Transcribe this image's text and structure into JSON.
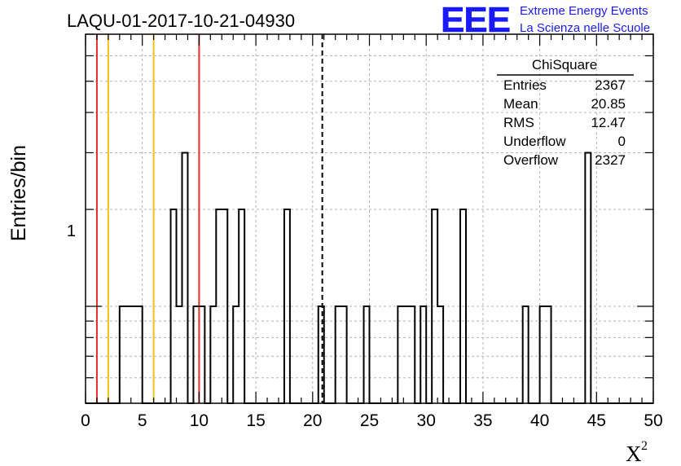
{
  "chart_data": {
    "type": "bar",
    "title": "LAQU-01-2017-10-21-04930",
    "ylabel": "Entries/bin",
    "xlabel": "X",
    "xlabel_superscript": "2",
    "xlim": [
      0,
      50
    ],
    "y_scale": "log",
    "ylim": [
      0.5,
      7
    ],
    "y_tick_label": "1",
    "x_ticks": [
      0,
      5,
      10,
      15,
      20,
      25,
      30,
      35,
      40,
      45,
      50
    ],
    "x_tick_labels": [
      "0",
      "5",
      "10",
      "15",
      "20",
      "25",
      "30",
      "35",
      "40",
      "45",
      "50"
    ],
    "bin_width": 0.5,
    "grid": true,
    "bins": [
      {
        "x": 3.0,
        "count": 1
      },
      {
        "x": 3.5,
        "count": 1
      },
      {
        "x": 4.0,
        "count": 1
      },
      {
        "x": 4.5,
        "count": 1
      },
      {
        "x": 7.5,
        "count": 2
      },
      {
        "x": 8.0,
        "count": 1
      },
      {
        "x": 8.5,
        "count": 3
      },
      {
        "x": 9.5,
        "count": 1
      },
      {
        "x": 10.0,
        "count": 1
      },
      {
        "x": 11.0,
        "count": 1
      },
      {
        "x": 11.5,
        "count": 2
      },
      {
        "x": 12.0,
        "count": 2
      },
      {
        "x": 13.0,
        "count": 1
      },
      {
        "x": 13.5,
        "count": 2
      },
      {
        "x": 17.5,
        "count": 2
      },
      {
        "x": 20.5,
        "count": 1
      },
      {
        "x": 22.0,
        "count": 1
      },
      {
        "x": 22.5,
        "count": 1
      },
      {
        "x": 24.5,
        "count": 1
      },
      {
        "x": 27.5,
        "count": 1
      },
      {
        "x": 28.0,
        "count": 1
      },
      {
        "x": 28.5,
        "count": 1
      },
      {
        "x": 29.5,
        "count": 1
      },
      {
        "x": 30.5,
        "count": 2
      },
      {
        "x": 31.0,
        "count": 1
      },
      {
        "x": 33.0,
        "count": 2
      },
      {
        "x": 38.5,
        "count": 1
      },
      {
        "x": 40.0,
        "count": 1
      },
      {
        "x": 40.5,
        "count": 1
      },
      {
        "x": 44.0,
        "count": 3
      }
    ],
    "markers": [
      {
        "x": 1,
        "color": "#e0302a",
        "style": "solid"
      },
      {
        "x": 2,
        "color": "#f0c020",
        "style": "solid"
      },
      {
        "x": 6,
        "color": "#f0c020",
        "style": "solid"
      },
      {
        "x": 10,
        "color": "#e0302a",
        "style": "solid"
      },
      {
        "x": 20.85,
        "color": "#000000",
        "style": "dashed"
      }
    ],
    "stats": {
      "header": "ChiSquare",
      "rows": [
        {
          "label": "Entries",
          "value": "2367"
        },
        {
          "label": "Mean",
          "value": "20.85"
        },
        {
          "label": "RMS",
          "value": "12.47"
        },
        {
          "label": "Underflow",
          "value": "0"
        },
        {
          "label": "Overflow",
          "value": "2327"
        }
      ]
    }
  },
  "logo": {
    "mark": "EEE",
    "line1": "Extreme Energy Events",
    "line2": "La Scienza nelle Scuole",
    "color": "#1a1aff"
  }
}
